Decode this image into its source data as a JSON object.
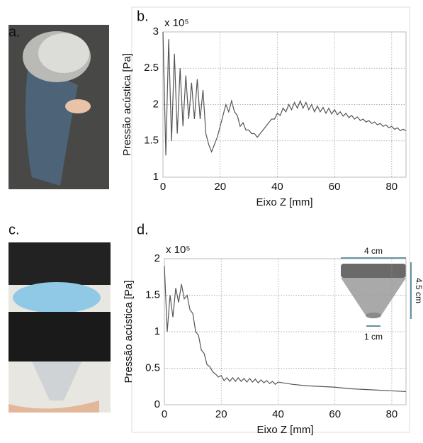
{
  "panel_labels": [
    "a.",
    "b.",
    "c.",
    "d."
  ],
  "chart_data": [
    {
      "type": "line",
      "multiplier": "x 10⁵",
      "ylabel": "Pressão acústica [Pa]",
      "xlabel": "Eixo Z [mm]",
      "xlim": [
        0,
        85
      ],
      "xticks": [
        0,
        20,
        40,
        60,
        80
      ],
      "ylim": [
        1,
        3
      ],
      "yticks": [
        1,
        1.5,
        2,
        2.5,
        3
      ],
      "grid": true,
      "color": "#555555",
      "x": [
        0,
        1,
        2,
        3,
        4,
        5,
        6,
        7,
        8,
        9,
        10,
        11,
        12,
        13,
        14,
        15,
        16,
        17,
        18,
        19,
        20,
        21,
        22,
        23,
        24,
        25,
        26,
        27,
        28,
        29,
        30,
        31,
        32,
        33,
        34,
        35,
        36,
        37,
        38,
        39,
        40,
        41,
        42,
        43,
        44,
        45,
        46,
        47,
        48,
        49,
        50,
        51,
        52,
        53,
        54,
        55,
        56,
        57,
        58,
        59,
        60,
        61,
        62,
        63,
        64,
        65,
        66,
        67,
        68,
        69,
        70,
        71,
        72,
        73,
        74,
        75,
        76,
        77,
        78,
        79,
        80,
        81,
        82,
        83,
        84,
        85
      ],
      "values": [
        3.0,
        1.3,
        2.9,
        1.5,
        2.7,
        1.6,
        2.5,
        1.7,
        2.4,
        1.8,
        2.3,
        1.8,
        2.35,
        1.8,
        2.2,
        1.6,
        1.45,
        1.35,
        1.45,
        1.55,
        1.7,
        1.85,
        2.0,
        1.9,
        2.05,
        1.9,
        1.85,
        1.7,
        1.75,
        1.65,
        1.65,
        1.6,
        1.6,
        1.55,
        1.6,
        1.65,
        1.7,
        1.75,
        1.8,
        1.8,
        1.88,
        1.85,
        1.95,
        1.9,
        2.0,
        1.93,
        2.03,
        1.95,
        2.05,
        1.95,
        2.03,
        1.93,
        2.0,
        1.9,
        1.98,
        1.9,
        1.96,
        1.88,
        1.95,
        1.87,
        1.93,
        1.86,
        1.9,
        1.84,
        1.88,
        1.82,
        1.85,
        1.8,
        1.83,
        1.78,
        1.8,
        1.76,
        1.78,
        1.74,
        1.76,
        1.72,
        1.74,
        1.7,
        1.72,
        1.68,
        1.7,
        1.66,
        1.68,
        1.64,
        1.66,
        1.64
      ]
    },
    {
      "type": "line",
      "multiplier": "x 10⁵",
      "ylabel": "Pressão acústica [Pa]",
      "xlabel": "Eixo Z [mm]",
      "xlim": [
        0,
        85
      ],
      "xticks": [
        0,
        20,
        40,
        60,
        80
      ],
      "ylim": [
        0,
        2
      ],
      "yticks": [
        0,
        0.5,
        1,
        1.5,
        2
      ],
      "grid": true,
      "color": "#555555",
      "annotations": [
        "4 cm",
        "4.5 cm",
        "1 cm"
      ],
      "x": [
        0,
        1,
        2,
        3,
        4,
        5,
        6,
        7,
        8,
        9,
        10,
        11,
        12,
        13,
        14,
        15,
        16,
        17,
        18,
        19,
        20,
        21,
        22,
        23,
        24,
        25,
        26,
        27,
        28,
        29,
        30,
        31,
        32,
        33,
        34,
        35,
        36,
        37,
        38,
        39,
        40,
        45,
        50,
        55,
        60,
        65,
        70,
        75,
        80,
        85
      ],
      "values": [
        1.9,
        1.0,
        1.5,
        1.2,
        1.6,
        1.4,
        1.65,
        1.45,
        1.5,
        1.3,
        1.25,
        1.0,
        0.95,
        0.75,
        0.7,
        0.55,
        0.52,
        0.45,
        0.42,
        0.38,
        0.4,
        0.33,
        0.37,
        0.32,
        0.37,
        0.32,
        0.37,
        0.32,
        0.36,
        0.31,
        0.36,
        0.31,
        0.35,
        0.3,
        0.34,
        0.3,
        0.33,
        0.29,
        0.32,
        0.28,
        0.31,
        0.28,
        0.26,
        0.25,
        0.24,
        0.22,
        0.21,
        0.2,
        0.19,
        0.18
      ]
    }
  ]
}
